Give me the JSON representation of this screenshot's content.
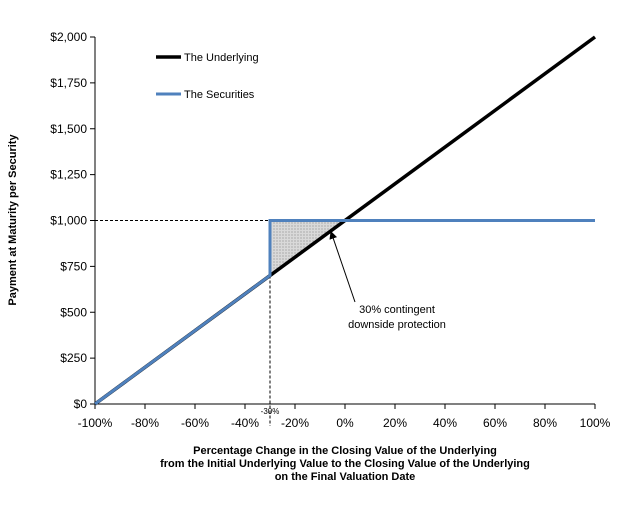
{
  "chart_data": {
    "type": "line",
    "xlabel_lines": [
      "Percentage Change in the Closing Value of the Underlying",
      "from the Initial Underlying Value to the Closing Value of the Underlying",
      "on the Final Valuation Date"
    ],
    "ylabel": "Payment at Maturity per Security",
    "xlim": [
      -100,
      100
    ],
    "ylim": [
      0,
      2000
    ],
    "x_ticks": [
      -100,
      -80,
      -60,
      -40,
      -20,
      0,
      20,
      40,
      60,
      80,
      100
    ],
    "x_tick_labels": [
      "-100%",
      "-80%",
      "-60%",
      "-40%",
      "-20%",
      "0%",
      "20%",
      "40%",
      "60%",
      "80%",
      "100%"
    ],
    "y_ticks": [
      0,
      250,
      500,
      750,
      1000,
      1250,
      1500,
      1750,
      2000
    ],
    "y_tick_labels": [
      "$0",
      "$250",
      "$500",
      "$750",
      "$1,000",
      "$1,250",
      "$1,500",
      "$1,750",
      "$2,000"
    ],
    "grid": false,
    "legend_position": "top-left",
    "series": [
      {
        "name": "The Underlying",
        "color": "#000000",
        "points": [
          [
            -100,
            0
          ],
          [
            100,
            2000
          ]
        ]
      },
      {
        "name": "The Securities",
        "color": "#4f81bd",
        "points": [
          [
            -100,
            0
          ],
          [
            -30,
            700
          ],
          [
            -30,
            1000
          ],
          [
            100,
            1000
          ]
        ]
      }
    ],
    "annotations": {
      "barrier_label": "-30%",
      "barrier_x": -30,
      "reference_y": 1000,
      "protection_text_lines": [
        "30% contingent",
        "downside protection"
      ],
      "protection_region": [
        [
          -30,
          700
        ],
        [
          -30,
          1000
        ],
        [
          0,
          1000
        ]
      ],
      "arrow_target": [
        -4,
        960
      ]
    }
  }
}
